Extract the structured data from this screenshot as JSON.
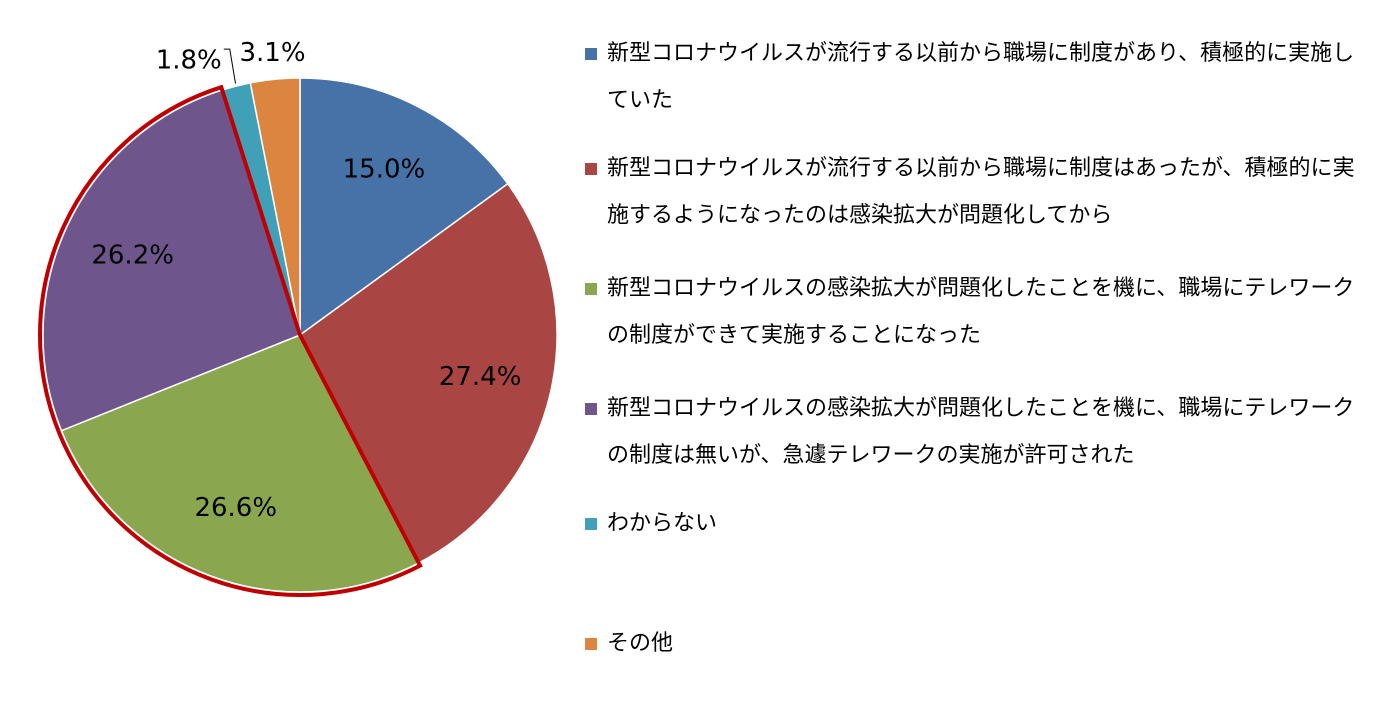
{
  "chart_data": {
    "type": "pie",
    "categories": [
      "新型コロナウイルスが流行する以前から職場に制度があり、積極的に実施していた",
      "新型コロナウイルスが流行する以前から職場に制度はあったが、積極的に実施するようになったのは感染拡大が問題化してから",
      "新型コロナウイルスの感染拡大が問題化したことを機に、職場にテレワークの制度ができて実施することになった",
      "新型コロナウイルスの感染拡大が問題化したことを機に、職場にテレワークの制度は無いが、急遽テレワークの実施が許可された",
      "わからない",
      "その他"
    ],
    "values": [
      15.0,
      27.4,
      26.6,
      26.2,
      1.8,
      3.1
    ],
    "value_labels": [
      "15.0%",
      "27.4%",
      "26.6%",
      "26.2%",
      "1.8%",
      "3.1%"
    ],
    "colors": [
      "#4672a8",
      "#a94644",
      "#8aa64e",
      "#6e568c",
      "#3fa0b8",
      "#dc8540"
    ],
    "legend": "right"
  }
}
